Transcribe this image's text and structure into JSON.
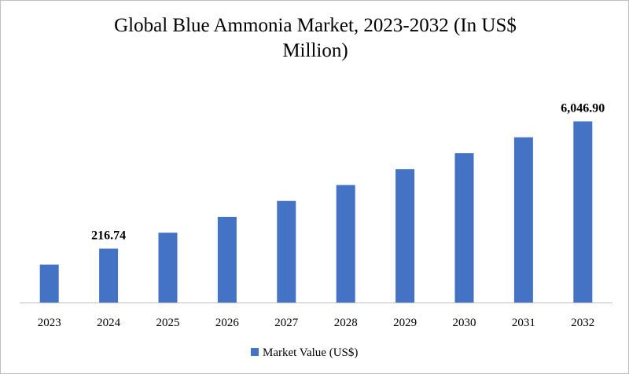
{
  "chart_data": {
    "type": "bar",
    "title": "Global Blue Ammonia Market, 2023-2032 (In US$ Million)",
    "categories": [
      "2023",
      "2024",
      "2025",
      "2026",
      "2027",
      "2028",
      "2029",
      "2030",
      "2031",
      "2032"
    ],
    "series": [
      {
        "name": "Market Value (US$)",
        "color": "#4472c4",
        "values": [
          143,
          216.74,
          329,
          498,
          755,
          1145,
          1736,
          2631,
          3989,
          6046.9
        ],
        "value_labels": [
          null,
          "216.74",
          null,
          null,
          null,
          null,
          null,
          null,
          null,
          "6,046.90"
        ]
      }
    ],
    "ylim": [
      53,
      10000
    ],
    "log_scale": true,
    "legend": "bottom"
  }
}
